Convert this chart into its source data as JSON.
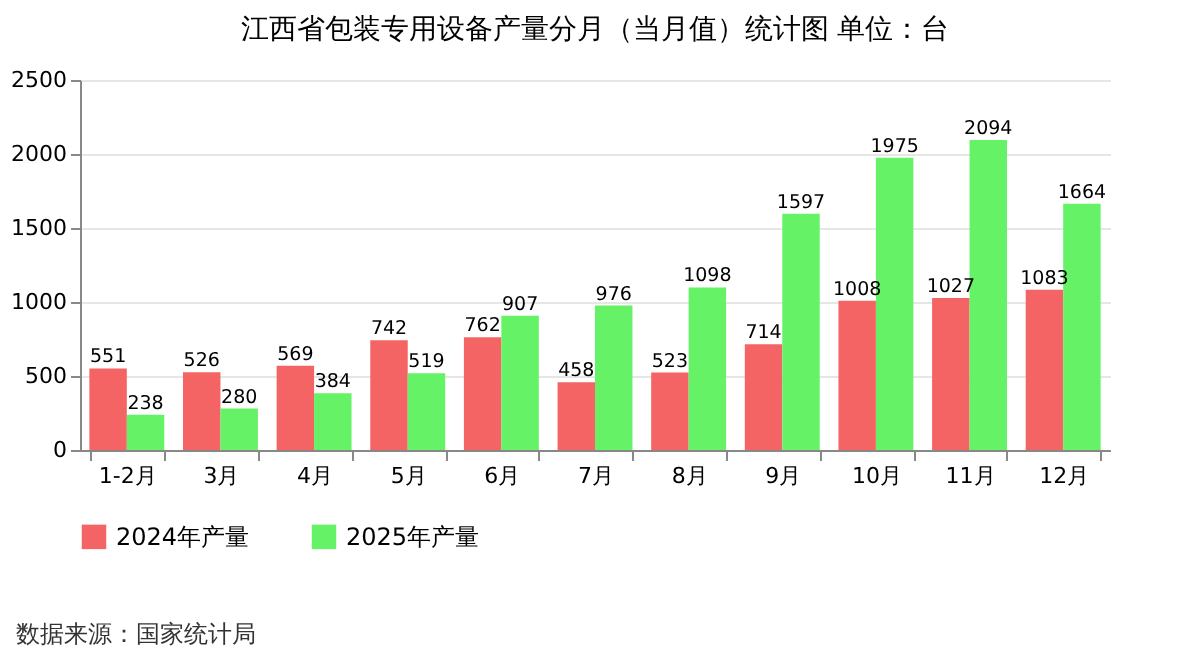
{
  "chart_data": {
    "type": "bar",
    "title": "江西省包装专用设备产量分月（当月值）统计图 单位：台",
    "categories": [
      "1-2月",
      "3月",
      "4月",
      "5月",
      "6月",
      "7月",
      "8月",
      "9月",
      "10月",
      "11月",
      "12月"
    ],
    "series": [
      {
        "name": "2024年产量",
        "color": "#f46464",
        "values": [
          551,
          526,
          569,
          742,
          762,
          458,
          523,
          714,
          1008,
          1027,
          1083
        ]
      },
      {
        "name": "2025年产量",
        "color": "#66f266",
        "values": [
          238,
          280,
          384,
          519,
          907,
          976,
          1098,
          1597,
          1975,
          2094,
          1664
        ]
      }
    ],
    "ylim": [
      0,
      2500
    ],
    "yticks": [
      0,
      500,
      1000,
      1500,
      2000,
      2500
    ],
    "grid": "y",
    "legend": "bottom",
    "data_labels": true,
    "annotations": [
      "数据来源：国家统计局"
    ]
  }
}
